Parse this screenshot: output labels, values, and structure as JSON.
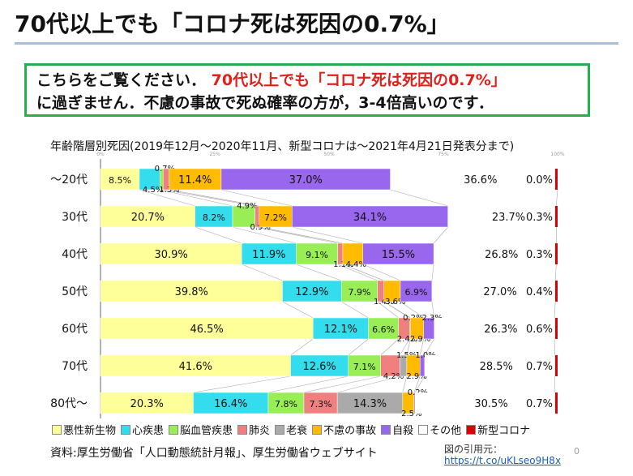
{
  "header": {
    "title": "70代以上でも「コロナ死は死因の0.7%」"
  },
  "callout": {
    "line1_prefix": "こちらをご覧ください．",
    "line1_highlight": "70代以上でも「コロナ死は死因の0.7%」",
    "line2": "に過ぎません．不慮の事故で死ぬ確率の方が，3-4倍高いのです．"
  },
  "source": "資料:厚生労働省「人口動態統計月報」、厚生労働省ウェブサイト",
  "citation": {
    "label": "図の引用元：",
    "url": "https://t.co/uKLseo9H8x"
  },
  "page_number": "0",
  "chart_data": {
    "type": "bar",
    "stacked": true,
    "orientation": "horizontal",
    "title": "年齢階層別死因(2019年12月～2020年11月、新型コロナは～2021年4月21日発表分まで)",
    "xlim": [
      0,
      100
    ],
    "x_ticks": [
      "0%",
      "25%",
      "50%",
      "75%",
      "100%"
    ],
    "categories": [
      "～20代",
      "30代",
      "40代",
      "50代",
      "60代",
      "70代",
      "80代～"
    ],
    "series": [
      {
        "name": "悪性新生物",
        "color": "#ffff99",
        "values": [
          8.5,
          20.7,
          30.9,
          39.8,
          46.5,
          41.6,
          20.3
        ],
        "labels": [
          "8.5%",
          "20.7%",
          "30.9%",
          "39.8%",
          "46.5%",
          "41.6%",
          "20.3%"
        ]
      },
      {
        "name": "心疾患",
        "color": "#33ddee",
        "values": [
          4.5,
          8.2,
          11.9,
          12.9,
          12.1,
          12.6,
          16.4
        ],
        "labels": [
          "4.5%",
          "8.2%",
          "11.9%",
          "12.9%",
          "12.1%",
          "12.6%",
          "16.4%"
        ]
      },
      {
        "name": "脳血管疾患",
        "color": "#99ee55",
        "values": [
          0.7,
          4.9,
          9.1,
          7.9,
          6.6,
          7.1,
          7.8
        ],
        "labels": [
          "0.7%",
          "4.9%",
          "9.1%",
          "7.9%",
          "6.6%",
          "7.1%",
          "7.8%"
        ]
      },
      {
        "name": "肺炎",
        "color": "#f08080",
        "values": [
          1.3,
          0.9,
          1.1,
          1.4,
          2.4,
          4.2,
          7.3
        ],
        "labels": [
          "1.3%",
          "0.9%",
          "1.1%",
          "1.4%",
          "2.4%",
          "4.2%",
          "7.3%"
        ]
      },
      {
        "name": "老衰",
        "color": "#aaaaaa",
        "values": [
          0,
          0,
          0,
          0,
          0.2,
          1.5,
          14.3
        ],
        "labels": [
          "",
          "",
          "",
          "",
          "0.2%",
          "1.5%",
          "14.3%"
        ]
      },
      {
        "name": "不慮の事故",
        "color": "#ffbb00",
        "values": [
          11.4,
          7.2,
          4.4,
          3.6,
          2.9,
          2.9,
          2.5
        ],
        "labels": [
          "11.4%",
          "7.2%",
          "4.4%",
          "3.6%",
          "2.9%",
          "2.9%",
          "2.5%"
        ]
      },
      {
        "name": "自殺",
        "color": "#9966ee",
        "values": [
          37.0,
          34.1,
          15.5,
          6.9,
          2.3,
          1.0,
          0.2
        ],
        "labels": [
          "37.0%",
          "34.1%",
          "15.5%",
          "6.9%",
          "2.3%",
          "1.0%",
          "0.2%"
        ]
      },
      {
        "name": "その他",
        "color": "#ffffff",
        "values": [
          36.6,
          23.7,
          26.8,
          27.0,
          26.3,
          28.5,
          30.5
        ],
        "labels": [
          "36.6%",
          "23.7%",
          "26.8%",
          "27.0%",
          "26.3%",
          "28.5%",
          "30.5%"
        ]
      },
      {
        "name": "新型コロナ",
        "color": "#dd0000",
        "values": [
          0.0,
          0.3,
          0.3,
          0.4,
          0.6,
          0.7,
          0.7
        ],
        "labels": [
          "0.0%",
          "0.3%",
          "0.3%",
          "0.4%",
          "0.6%",
          "0.7%",
          "0.7%"
        ]
      }
    ]
  }
}
